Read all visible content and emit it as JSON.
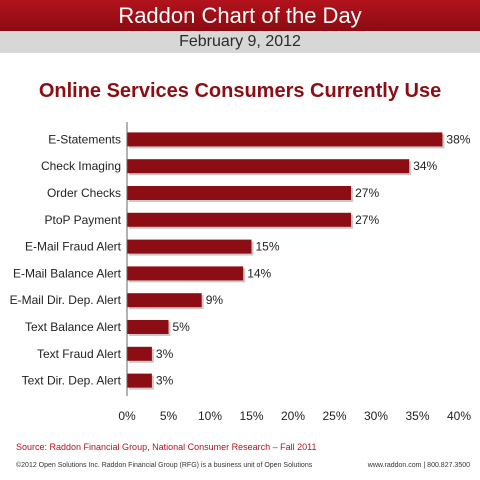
{
  "header": {
    "title": "Raddon Chart of the Day",
    "date": "February 9, 2012"
  },
  "footer": {
    "source": "Source: Raddon Financial Group, National Consumer Research – Fall 2011",
    "copyright": "©2012 Open Solutions Inc. Raddon Financial Group (RFG) is a business unit of Open Solutions",
    "contact": "www.raddon.com | 800.827.3500"
  },
  "chart_data": {
    "type": "bar",
    "orientation": "horizontal",
    "title": "Online Services Consumers Currently Use",
    "categories": [
      "E-Statements",
      "Check Imaging",
      "Order Checks",
      "PtoP Payment",
      "E-Mail Fraud Alert",
      "E-Mail Balance Alert",
      "E-Mail Dir. Dep. Alert",
      "Text Balance Alert",
      "Text Fraud Alert",
      "Text Dir. Dep. Alert"
    ],
    "values": [
      38,
      34,
      27,
      27,
      15,
      14,
      9,
      5,
      3,
      3
    ],
    "value_labels": [
      "38%",
      "34%",
      "27%",
      "27%",
      "15%",
      "14%",
      "9%",
      "5%",
      "3%",
      "3%"
    ],
    "xlim": [
      0,
      40
    ],
    "xticks": [
      0,
      5,
      10,
      15,
      20,
      25,
      30,
      35,
      40
    ],
    "xtick_labels": [
      "0%",
      "5%",
      "10%",
      "15%",
      "20%",
      "25%",
      "30%",
      "35%",
      "40%"
    ],
    "grid": false,
    "bar_color": "#8c0e14"
  }
}
